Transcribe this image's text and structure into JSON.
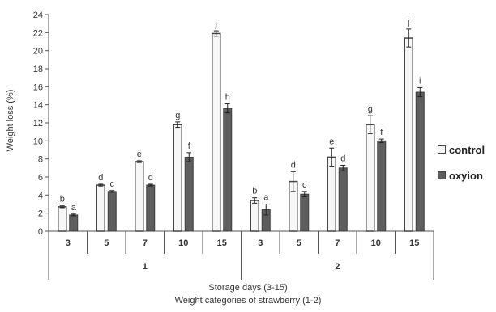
{
  "chart_data": {
    "type": "bar",
    "title": "",
    "ylabel": "Weight loss (%)",
    "xlabel_lines": [
      "Storage days (3-15)",
      "Weight categories of strawberry (1-2)"
    ],
    "ylim": [
      0,
      24
    ],
    "yticks": [
      0,
      2,
      4,
      6,
      8,
      10,
      12,
      14,
      16,
      18,
      20,
      22,
      24
    ],
    "grid": false,
    "legend_position": "right",
    "groups": [
      {
        "label": "1",
        "categories": [
          "3",
          "5",
          "7",
          "10",
          "15"
        ]
      },
      {
        "label": "2",
        "categories": [
          "3",
          "5",
          "7",
          "10",
          "15"
        ]
      }
    ],
    "series": [
      {
        "name": "control",
        "color": "#f7f7f7",
        "values": [
          2.7,
          5.1,
          7.7,
          11.8,
          21.9,
          3.4,
          5.5,
          8.2,
          11.8,
          21.4
        ],
        "errors": [
          0.1,
          0.1,
          0.1,
          0.3,
          0.3,
          0.3,
          1.1,
          1.0,
          1.0,
          1.0
        ],
        "labels": [
          "b",
          "d",
          "e",
          "g",
          "j",
          "b",
          "d",
          "e",
          "g",
          "j"
        ]
      },
      {
        "name": "oxyion",
        "color": "#5e5e5e",
        "values": [
          1.8,
          4.4,
          5.1,
          8.2,
          13.6,
          2.4,
          4.1,
          7.0,
          10.0,
          15.4
        ],
        "errors": [
          0.1,
          0.1,
          0.1,
          0.5,
          0.5,
          0.6,
          0.3,
          0.3,
          0.2,
          0.5
        ],
        "labels": [
          "a",
          "c",
          "d",
          "f",
          "h",
          "a",
          "c",
          "d",
          "f",
          "i"
        ]
      }
    ]
  }
}
